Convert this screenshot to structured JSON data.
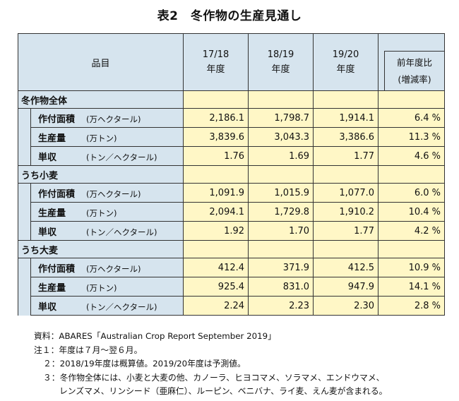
{
  "title": "表2　冬作物の生産見通し",
  "header": {
    "item": "品目",
    "years": [
      {
        "line1": "17/18",
        "line2": "年度"
      },
      {
        "line1": "18/19",
        "line2": "年度"
      },
      {
        "line1": "19/20",
        "line2": "年度"
      }
    ],
    "ratio_line1": "前年度比",
    "ratio_line2": "(増減率)"
  },
  "sections": [
    {
      "label": "冬作物全体",
      "rows": [
        {
          "metric": "作付面積",
          "unit": "(万ヘクタール)",
          "values": [
            "2,186.1",
            "1,798.7",
            "1,914.1"
          ],
          "ratio": "6.4 %"
        },
        {
          "metric": "生産量",
          "unit": "(万トン)",
          "values": [
            "3,839.6",
            "3,043.3",
            "3,386.6"
          ],
          "ratio": "11.3 %"
        },
        {
          "metric": "単収",
          "unit": "(トン／ヘクタール)",
          "values": [
            "1.76",
            "1.69",
            "1.77"
          ],
          "ratio": "4.6 %"
        }
      ]
    },
    {
      "label": "うち小麦",
      "rows": [
        {
          "metric": "作付面積",
          "unit": "(万ヘクタール)",
          "values": [
            "1,091.9",
            "1,015.9",
            "1,077.0"
          ],
          "ratio": "6.0 %"
        },
        {
          "metric": "生産量",
          "unit": "(万トン)",
          "values": [
            "2,094.1",
            "1,729.8",
            "1,910.2"
          ],
          "ratio": "10.4 %"
        },
        {
          "metric": "単収",
          "unit": "(トン／ヘクタール)",
          "values": [
            "1.92",
            "1.70",
            "1.77"
          ],
          "ratio": "4.2 %"
        }
      ]
    },
    {
      "label": "うち大麦",
      "rows": [
        {
          "metric": "作付面積",
          "unit": "(万ヘクタール)",
          "values": [
            "412.4",
            "371.9",
            "412.5"
          ],
          "ratio": "10.9 %"
        },
        {
          "metric": "生産量",
          "unit": "(万トン)",
          "values": [
            "925.4",
            "831.0",
            "947.9"
          ],
          "ratio": "14.1 %"
        },
        {
          "metric": "単収",
          "unit": "(トン／ヘクタール)",
          "values": [
            "2.24",
            "2.23",
            "2.30"
          ],
          "ratio": "2.8 %"
        }
      ]
    }
  ],
  "notes": {
    "source": "資料：ABARES「Australian Crop Report September 2019」",
    "note1": "注１：年度は７月～翌６月。",
    "note2": "２：2018/19年度は概算値。2019/20年度は予測値。",
    "note3_line1": "３：冬作物全体には、小麦と大麦の他、カノーラ、ヒヨコマメ、ソラマメ、エンドウマメ、",
    "note3_line2": "レンズマメ、リンシード（亜麻仁）、ルーピン、ベニバナ、ライ麦、えん麦が含まれる。"
  },
  "colors": {
    "header_bg": "#d6e4ee",
    "value_bg": "#fff7c6",
    "border": "#333333"
  }
}
